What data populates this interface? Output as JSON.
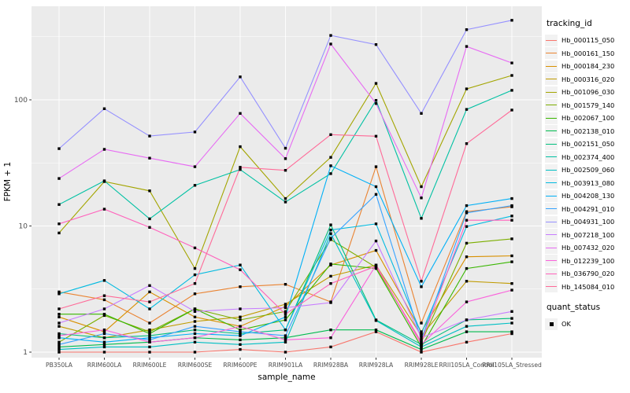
{
  "chart_data": {
    "type": "line",
    "xlabel": "sample_name",
    "ylabel": "FPKM + 1",
    "y_scale": "log10",
    "ylim_log": [
      -0.045,
      2.74
    ],
    "y_ticks": [
      1,
      10,
      100
    ],
    "y_minor_ticks": [
      3.162,
      31.62,
      316.2
    ],
    "grid": "white major and minor gridlines on gray panel",
    "panel_bg": "#EBEBEB",
    "legend_position": "right",
    "point_marker": "small black filled square",
    "categories": [
      "PB350LA",
      "RRIM600LA",
      "RRIM600LE",
      "RRIM600SE",
      "RRIM600PE",
      "RRIM901LA",
      "RRIM928BA",
      "RRIM928LA",
      "RRIM928LE",
      "RRII105LA_Control",
      "RRII105LA_Stressed"
    ],
    "series": [
      {
        "name": "Hb_000115_050",
        "color": "#F8766D",
        "values": [
          1.0,
          1.0,
          1.0,
          1.0,
          1.05,
          1.0,
          1.1,
          1.45,
          1.0,
          1.2,
          1.4
        ]
      },
      {
        "name": "Hb_000161_150",
        "color": "#EA8331",
        "values": [
          3.0,
          2.6,
          1.7,
          2.9,
          3.3,
          3.45,
          2.5,
          29.5,
          1.7,
          13.0,
          14.2
        ]
      },
      {
        "name": "Hb_000184_230",
        "color": "#D89000",
        "values": [
          1.9,
          1.45,
          3.0,
          1.9,
          1.6,
          2.3,
          4.9,
          6.4,
          1.45,
          5.7,
          5.8
        ]
      },
      {
        "name": "Hb_000316_020",
        "color": "#C09B00",
        "values": [
          1.6,
          1.3,
          1.5,
          1.75,
          1.9,
          2.4,
          4.0,
          4.9,
          1.35,
          3.65,
          3.5
        ]
      },
      {
        "name": "Hb_001096_030",
        "color": "#A3A500",
        "values": [
          8.8,
          22.5,
          19.0,
          4.6,
          42.5,
          16.5,
          35.0,
          135.0,
          20.5,
          122.0,
          156.0
        ]
      },
      {
        "name": "Hb_001579_140",
        "color": "#7CAE00",
        "values": [
          1.2,
          1.95,
          1.45,
          2.2,
          1.8,
          2.1,
          7.8,
          4.7,
          1.2,
          7.3,
          7.9
        ]
      },
      {
        "name": "Hb_002067_100",
        "color": "#39B600",
        "values": [
          2.0,
          2.0,
          1.4,
          2.2,
          1.5,
          1.8,
          5.0,
          4.6,
          1.1,
          4.6,
          5.2
        ]
      },
      {
        "name": "Hb_002138_010",
        "color": "#00BB4E",
        "values": [
          1.1,
          1.15,
          1.2,
          1.3,
          1.25,
          1.3,
          1.5,
          1.5,
          1.05,
          1.45,
          1.45
        ]
      },
      {
        "name": "Hb_002151_050",
        "color": "#00BF7D",
        "values": [
          1.4,
          1.3,
          1.35,
          1.5,
          1.4,
          1.5,
          10.2,
          1.8,
          1.15,
          1.8,
          1.85
        ]
      },
      {
        "name": "Hb_002374_400",
        "color": "#00C1A3",
        "values": [
          14.8,
          22.8,
          11.4,
          21.0,
          28.0,
          15.5,
          26.0,
          99.0,
          11.5,
          84.0,
          119.0
        ]
      },
      {
        "name": "Hb_002509_060",
        "color": "#00BFC4",
        "values": [
          1.05,
          1.1,
          1.1,
          1.2,
          1.15,
          1.2,
          8.7,
          1.78,
          1.1,
          1.6,
          1.7
        ]
      },
      {
        "name": "Hb_003913_080",
        "color": "#00BAE0",
        "values": [
          2.9,
          3.7,
          2.2,
          4.1,
          4.9,
          1.5,
          9.3,
          10.4,
          1.4,
          9.9,
          12.0
        ]
      },
      {
        "name": "Hb_004208_130",
        "color": "#00B0F6",
        "values": [
          1.3,
          1.2,
          1.3,
          1.4,
          1.35,
          1.9,
          30.0,
          20.5,
          3.3,
          14.5,
          16.5
        ]
      },
      {
        "name": "Hb_004291_010",
        "color": "#35A2FF",
        "values": [
          1.15,
          1.4,
          1.25,
          1.6,
          1.45,
          1.35,
          8.0,
          17.8,
          1.25,
          12.7,
          14.5
        ]
      },
      {
        "name": "Hb_004931_100",
        "color": "#9590FF",
        "values": [
          41.0,
          85.0,
          51.6,
          55.6,
          152.0,
          41.3,
          324.0,
          274.0,
          78.0,
          360.0,
          427.0
        ]
      },
      {
        "name": "Hb_007218_100",
        "color": "#C77CFF",
        "values": [
          1.7,
          2.2,
          3.37,
          2.1,
          2.2,
          2.25,
          2.47,
          7.6,
          1.3,
          1.8,
          2.1
        ]
      },
      {
        "name": "Hb_007432_020",
        "color": "#E76BF3",
        "values": [
          23.8,
          40.5,
          34.5,
          29.5,
          78.0,
          34.2,
          277.0,
          93.5,
          16.7,
          265.0,
          196.0
        ]
      },
      {
        "name": "Hb_012239_100",
        "color": "#FA62DB",
        "values": [
          1.35,
          1.5,
          1.2,
          1.3,
          1.6,
          1.25,
          1.3,
          4.9,
          1.15,
          2.5,
          3.1
        ]
      },
      {
        "name": "Hb_036790_020",
        "color": "#FF62BC",
        "values": [
          10.4,
          13.6,
          9.75,
          6.7,
          4.5,
          2.0,
          3.5,
          4.8,
          1.2,
          11.1,
          11.1
        ]
      },
      {
        "name": "Hb_145084_010",
        "color": "#FF6A98",
        "values": [
          2.2,
          2.8,
          2.5,
          3.5,
          29.2,
          27.6,
          53.0,
          51.5,
          3.65,
          45.0,
          83.0
        ]
      }
    ]
  },
  "legend": {
    "tracking_title": "tracking_id",
    "quant_title": "quant_status",
    "quant_items": [
      {
        "label": "OK",
        "marker": "black-square"
      }
    ]
  },
  "axis_text_color": "#4D4D4D"
}
